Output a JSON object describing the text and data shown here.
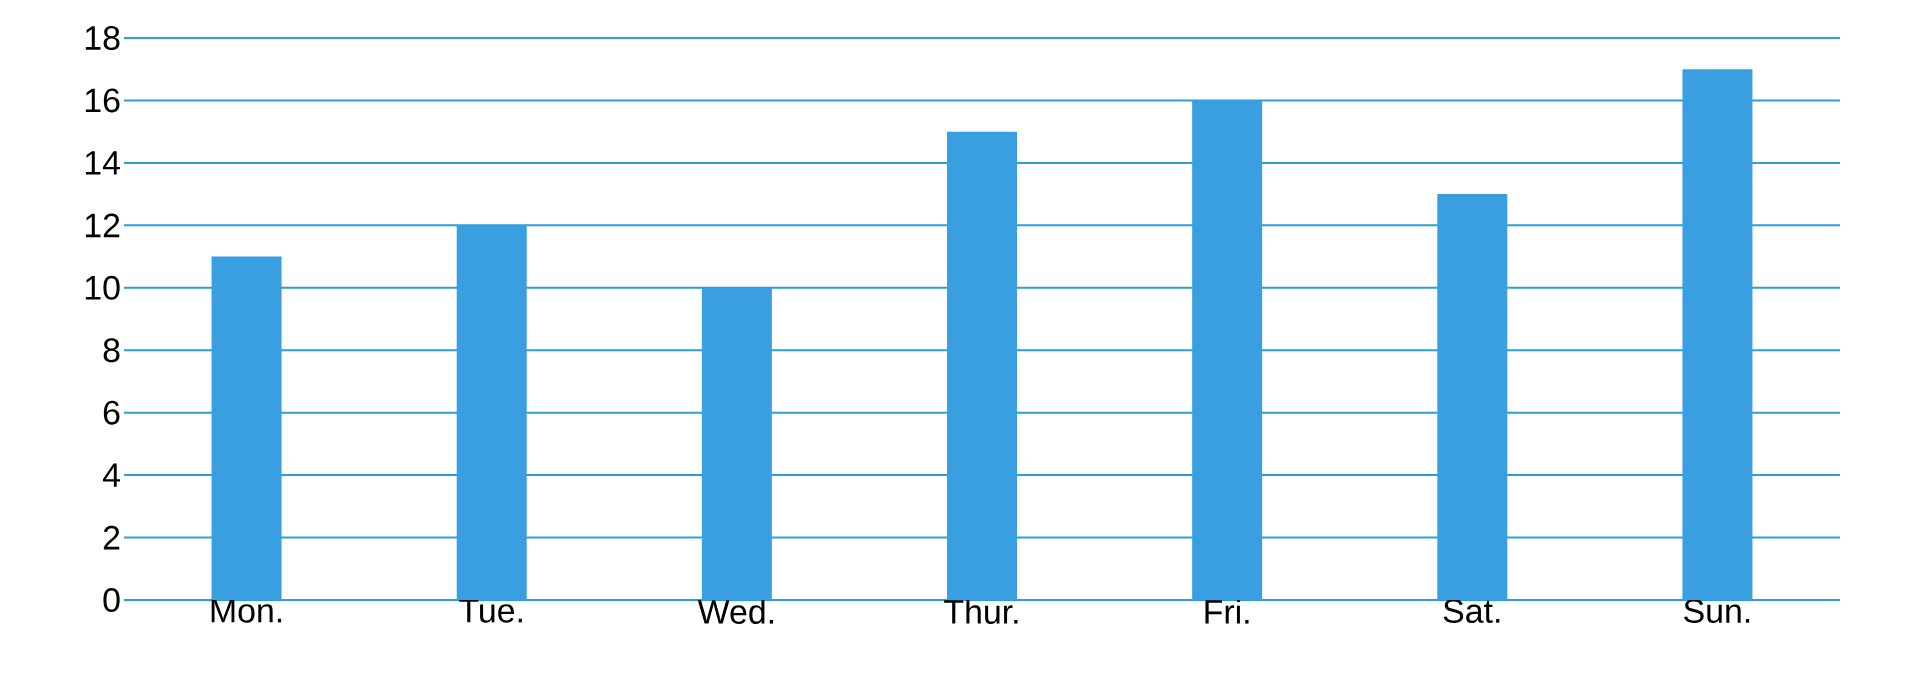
{
  "chart_data": {
    "type": "bar",
    "categories": [
      "Mon.",
      "Tue.",
      "Wed.",
      "Thur.",
      "Fri.",
      "Sat.",
      "Sun."
    ],
    "values": [
      11,
      12,
      10,
      15,
      16,
      13,
      17
    ],
    "color": "#3a9fe0",
    "ylim": [
      0,
      18
    ],
    "yticks": [
      0,
      2,
      4,
      6,
      8,
      10,
      12,
      14,
      16,
      18
    ],
    "grid": "y"
  }
}
